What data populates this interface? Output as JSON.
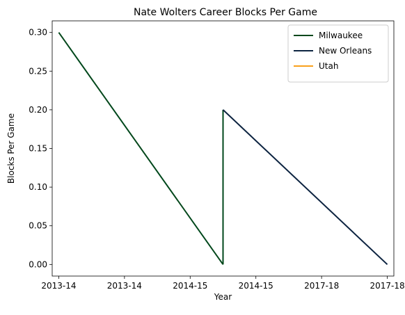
{
  "chart_data": {
    "type": "line",
    "title": "Nate Wolters Career Blocks Per Game",
    "xlabel": "Year",
    "ylabel": "Blocks Per Game",
    "x_tick_labels": [
      "2013-14",
      "2013-14",
      "2014-15",
      "2014-15",
      "2017-18",
      "2017-18"
    ],
    "x_range": [
      -0.1,
      5.1
    ],
    "ylim": [
      -0.015,
      0.315
    ],
    "y_ticks": [
      0.0,
      0.05,
      0.1,
      0.15,
      0.2,
      0.25,
      0.3
    ],
    "y_tick_labels": [
      "0.00",
      "0.05",
      "0.10",
      "0.15",
      "0.20",
      "0.25",
      "0.30"
    ],
    "grid": false,
    "legend_position": "top-right",
    "series": [
      {
        "name": "Milwaukee",
        "color": "#00471B",
        "points": [
          {
            "x": 0,
            "y": 0.3
          },
          {
            "x": 2.5,
            "y": 0.0
          }
        ]
      },
      {
        "name": "New Orleans",
        "color": "#0C2340",
        "points": [
          {
            "x": 2.5,
            "y": 0.2
          },
          {
            "x": 5,
            "y": 0.0
          }
        ]
      },
      {
        "name": "Utah",
        "color": "#F9A01B",
        "points": []
      }
    ],
    "connectors": [
      {
        "color": "#00471B",
        "points": [
          {
            "x": 2.5,
            "y": 0.0
          },
          {
            "x": 2.5,
            "y": 0.2
          }
        ]
      }
    ]
  }
}
